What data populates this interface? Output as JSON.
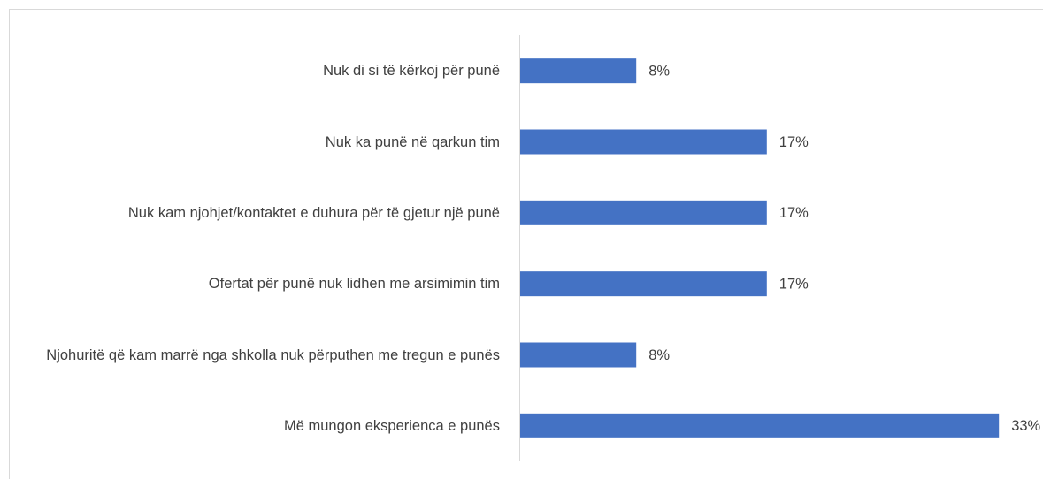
{
  "chart_data": {
    "type": "bar",
    "orientation": "horizontal",
    "categories": [
      "Nuk di si të kërkoj për punë",
      "Nuk ka punë në qarkun tim",
      "Nuk kam njohjet/kontaktet e duhura për të gjetur një punë",
      "Ofertat për punë nuk lidhen me arsimimin tim",
      "Njohuritë që kam marrë nga shkolla nuk përputhen me tregun e punës",
      "Më mungon eksperienca e punës"
    ],
    "values": [
      8,
      17,
      17,
      17,
      8,
      33
    ],
    "value_labels": [
      "8%",
      "17%",
      "17%",
      "17%",
      "8%",
      "33%"
    ],
    "color": "#4472c4"
  }
}
